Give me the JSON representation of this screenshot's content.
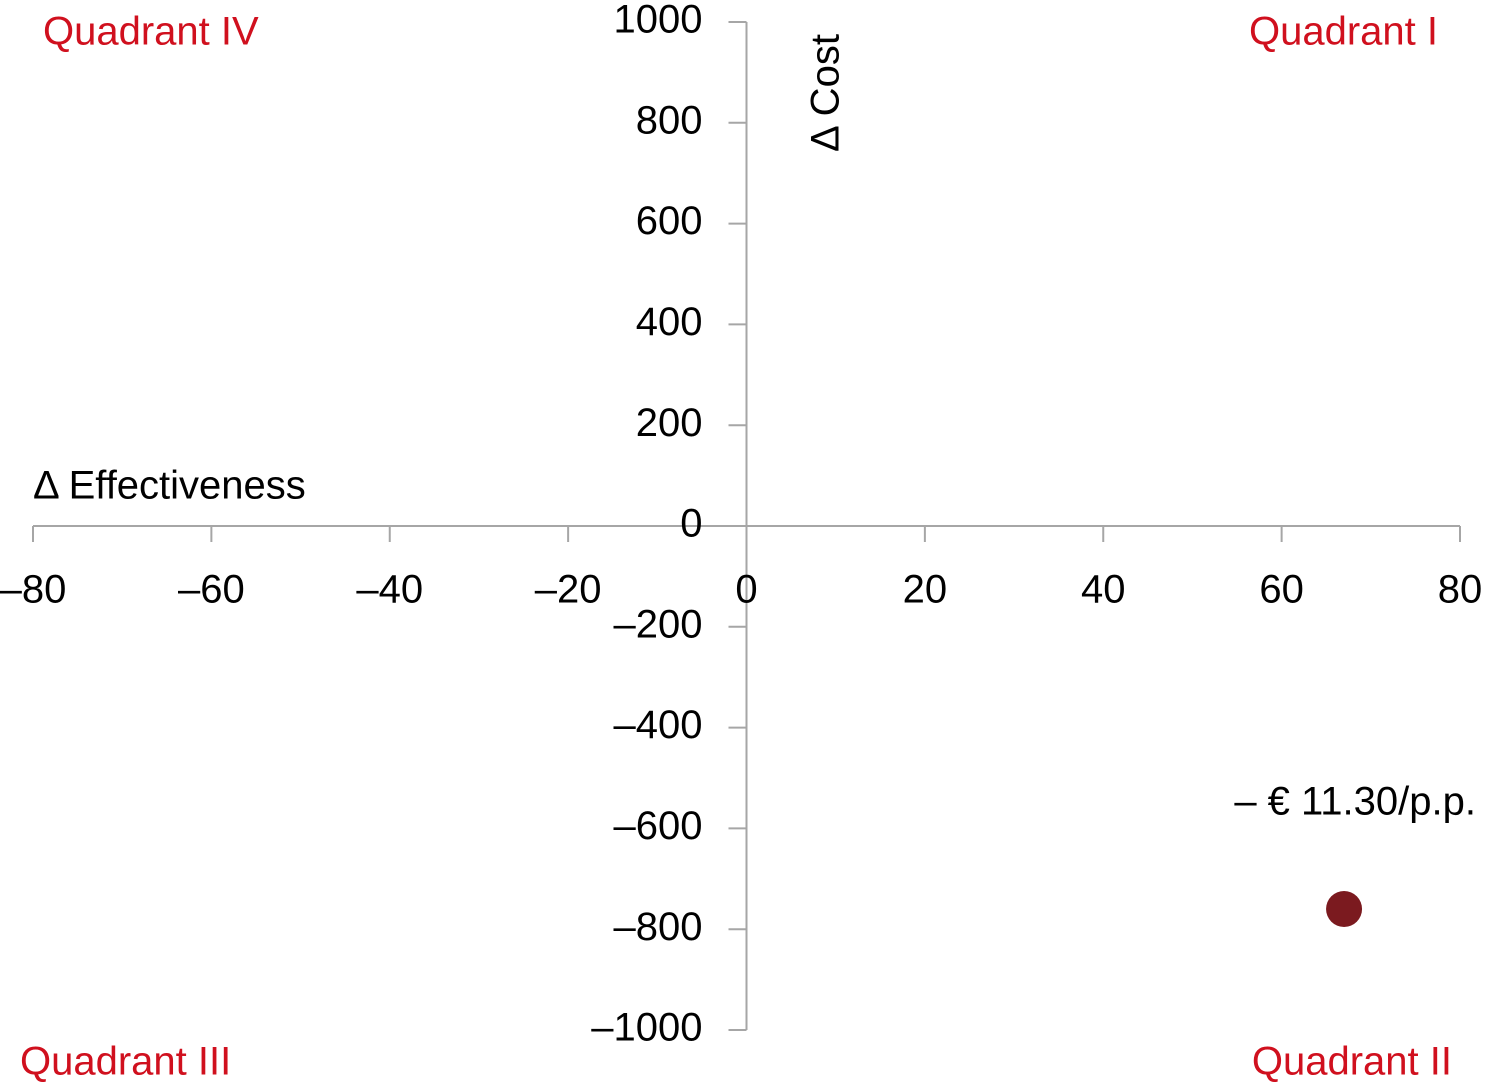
{
  "chart_data": {
    "type": "scatter",
    "x_label": "Δ Effectiveness",
    "y_label": "Δ Cost",
    "x": [
      67
    ],
    "values": [
      -760
    ],
    "color": "#7b1a1f",
    "xlim": [
      -80,
      80
    ],
    "ylim": [
      -1000,
      1000
    ],
    "xticks": [
      {
        "value": -80,
        "label": "–80"
      },
      {
        "value": -60,
        "label": "–60"
      },
      {
        "value": -40,
        "label": "–40"
      },
      {
        "value": -20,
        "label": "–20"
      },
      0,
      20,
      40,
      60,
      80
    ],
    "yticks": [
      {
        "value": -1000,
        "label": "–1000"
      },
      {
        "value": -800,
        "label": "–800"
      },
      {
        "value": -600,
        "label": "–600"
      },
      {
        "value": -400,
        "label": "–400"
      },
      {
        "value": -200,
        "label": "–200"
      },
      0,
      200,
      400,
      600,
      800,
      1000
    ],
    "annotations": [
      "Quadrant IV",
      "Quadrant I",
      "Quadrant III",
      "Quadrant II",
      "– € 11.30/p.p."
    ]
  }
}
